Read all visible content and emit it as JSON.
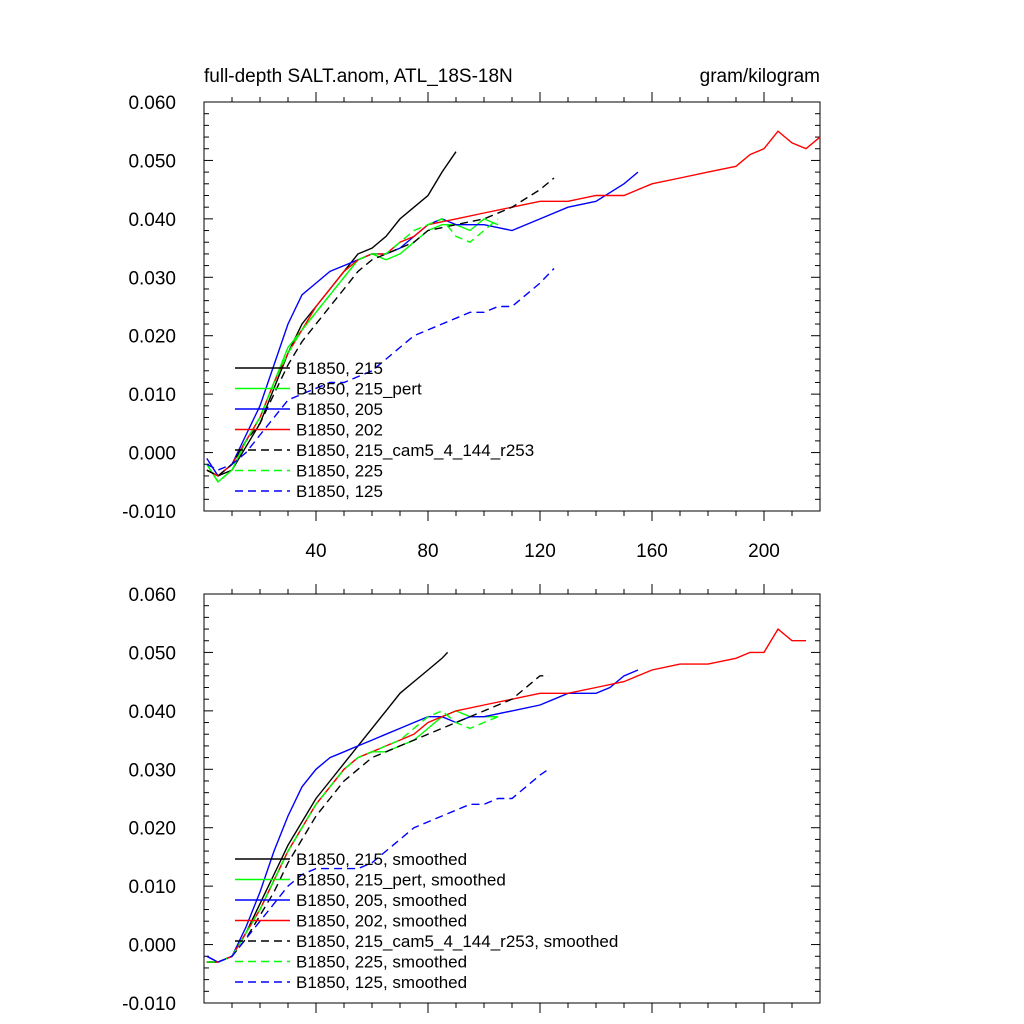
{
  "chart_data": [
    {
      "type": "line",
      "title_left": "full-depth SALT.anom, ATL_18S-18N",
      "title_right": "gram/kilogram",
      "xlim": [
        0,
        220
      ],
      "ylim": [
        -0.01,
        0.06
      ],
      "x_ticks": [
        40,
        80,
        120,
        160,
        200
      ],
      "x_tick_labels": [
        "40",
        "80",
        "120",
        "160",
        "200"
      ],
      "y_ticks": [
        -0.01,
        0.0,
        0.01,
        0.02,
        0.03,
        0.04,
        0.05,
        0.06
      ],
      "y_tick_labels": [
        "-0.010",
        "0.000",
        "0.010",
        "0.020",
        "0.030",
        "0.040",
        "0.050",
        "0.060"
      ],
      "legend_position": "lower-left",
      "series": [
        {
          "name": "B1850, 215",
          "color": "#000000",
          "dash": "solid",
          "x": [
            1,
            5,
            10,
            15,
            20,
            25,
            30,
            35,
            40,
            45,
            50,
            55,
            60,
            65,
            70,
            75,
            80,
            85,
            90
          ],
          "y": [
            -0.003,
            -0.004,
            -0.003,
            0.001,
            0.005,
            0.011,
            0.017,
            0.022,
            0.025,
            0.028,
            0.031,
            0.034,
            0.035,
            0.037,
            0.04,
            0.042,
            0.044,
            0.048,
            0.0515
          ]
        },
        {
          "name": "B1850, 215_pert",
          "color": "#00ff00",
          "dash": "solid",
          "x": [
            1,
            5,
            10,
            15,
            20,
            25,
            30,
            35,
            40,
            45,
            50,
            55,
            60,
            65,
            70,
            75,
            80,
            85,
            90,
            95,
            100,
            105
          ],
          "y": [
            -0.002,
            -0.005,
            -0.003,
            0.002,
            0.006,
            0.012,
            0.018,
            0.021,
            0.024,
            0.027,
            0.03,
            0.033,
            0.034,
            0.033,
            0.034,
            0.036,
            0.038,
            0.039,
            0.039,
            0.038,
            0.04,
            0.039
          ]
        },
        {
          "name": "B1850, 205",
          "color": "#0000ff",
          "dash": "solid",
          "x": [
            1,
            5,
            10,
            15,
            20,
            25,
            30,
            35,
            40,
            45,
            50,
            55,
            60,
            65,
            70,
            75,
            80,
            85,
            90,
            100,
            110,
            120,
            130,
            140,
            150,
            155
          ],
          "y": [
            -0.001,
            -0.004,
            -0.002,
            0.003,
            0.008,
            0.015,
            0.022,
            0.027,
            0.029,
            0.031,
            0.032,
            0.033,
            0.034,
            0.034,
            0.035,
            0.037,
            0.039,
            0.04,
            0.039,
            0.039,
            0.038,
            0.04,
            0.042,
            0.043,
            0.046,
            0.048
          ]
        },
        {
          "name": "B1850, 202",
          "color": "#ff0000",
          "dash": "solid",
          "x": [
            1,
            5,
            10,
            15,
            20,
            25,
            30,
            35,
            40,
            45,
            50,
            55,
            60,
            65,
            70,
            75,
            80,
            90,
            100,
            110,
            120,
            130,
            140,
            150,
            160,
            170,
            180,
            190,
            195,
            200,
            205,
            210,
            215,
            220
          ],
          "y": [
            -0.003,
            -0.004,
            -0.002,
            0.002,
            0.006,
            0.012,
            0.017,
            0.021,
            0.025,
            0.028,
            0.031,
            0.033,
            0.034,
            0.034,
            0.036,
            0.037,
            0.039,
            0.04,
            0.041,
            0.042,
            0.043,
            0.043,
            0.044,
            0.044,
            0.046,
            0.047,
            0.048,
            0.049,
            0.051,
            0.052,
            0.055,
            0.053,
            0.052,
            0.054
          ]
        },
        {
          "name": "B1850, 215_cam5_4_144_r253",
          "color": "#000000",
          "dash": "dashed",
          "x": [
            1,
            5,
            10,
            15,
            20,
            25,
            30,
            35,
            40,
            45,
            50,
            55,
            60,
            65,
            70,
            75,
            80,
            90,
            100,
            110,
            120,
            125
          ],
          "y": [
            -0.003,
            -0.004,
            -0.002,
            0.002,
            0.005,
            0.01,
            0.015,
            0.019,
            0.022,
            0.025,
            0.028,
            0.031,
            0.033,
            0.034,
            0.035,
            0.036,
            0.038,
            0.039,
            0.04,
            0.042,
            0.045,
            0.047
          ]
        },
        {
          "name": "B1850, 225",
          "color": "#00ff00",
          "dash": "dashed",
          "x": [
            1,
            5,
            10,
            15,
            20,
            25,
            30,
            35,
            40,
            45,
            50,
            55,
            60,
            65,
            70,
            75,
            80,
            85,
            90,
            95,
            100,
            105
          ],
          "y": [
            -0.002,
            -0.005,
            -0.003,
            0.002,
            0.006,
            0.012,
            0.017,
            0.021,
            0.024,
            0.027,
            0.03,
            0.033,
            0.034,
            0.034,
            0.036,
            0.038,
            0.039,
            0.04,
            0.037,
            0.036,
            0.038,
            0.04
          ]
        },
        {
          "name": "B1850, 125",
          "color": "#0000ff",
          "dash": "dashed",
          "x": [
            1,
            5,
            10,
            15,
            20,
            25,
            30,
            35,
            40,
            45,
            50,
            55,
            60,
            65,
            70,
            75,
            80,
            85,
            90,
            95,
            100,
            105,
            110,
            115,
            120,
            125
          ],
          "y": [
            -0.002,
            -0.003,
            -0.002,
            0.0,
            0.003,
            0.006,
            0.009,
            0.01,
            0.011,
            0.012,
            0.012,
            0.013,
            0.014,
            0.016,
            0.018,
            0.02,
            0.021,
            0.022,
            0.023,
            0.024,
            0.024,
            0.025,
            0.025,
            0.027,
            0.029,
            0.0315
          ]
        }
      ]
    },
    {
      "type": "line",
      "xlim": [
        0,
        220
      ],
      "ylim": [
        -0.01,
        0.06
      ],
      "x_ticks": [
        40,
        80,
        120,
        160,
        200
      ],
      "y_ticks": [
        -0.01,
        0.0,
        0.01,
        0.02,
        0.03,
        0.04,
        0.05,
        0.06
      ],
      "y_tick_labels": [
        "-0.010",
        "0.000",
        "0.010",
        "0.020",
        "0.030",
        "0.040",
        "0.050",
        "0.060"
      ],
      "legend_position": "lower-left",
      "series": [
        {
          "name": "B1850, 215, smoothed",
          "color": "#000000",
          "dash": "solid",
          "x": [
            1,
            5,
            10,
            15,
            20,
            25,
            30,
            35,
            40,
            45,
            50,
            55,
            60,
            65,
            70,
            75,
            80,
            85,
            87
          ],
          "y": [
            -0.003,
            -0.003,
            -0.002,
            0.002,
            0.007,
            0.012,
            0.017,
            0.021,
            0.025,
            0.028,
            0.031,
            0.034,
            0.037,
            0.04,
            0.043,
            0.045,
            0.047,
            0.049,
            0.05
          ]
        },
        {
          "name": "B1850, 215_pert, smoothed",
          "color": "#00ff00",
          "dash": "solid",
          "x": [
            1,
            5,
            10,
            15,
            20,
            25,
            30,
            35,
            40,
            45,
            50,
            55,
            60,
            65,
            70,
            75,
            80,
            85,
            90,
            95,
            100,
            105
          ],
          "y": [
            -0.003,
            -0.003,
            -0.002,
            0.002,
            0.006,
            0.011,
            0.016,
            0.02,
            0.024,
            0.027,
            0.03,
            0.032,
            0.033,
            0.033,
            0.034,
            0.035,
            0.037,
            0.039,
            0.04,
            0.039,
            0.039,
            0.039
          ]
        },
        {
          "name": "B1850, 205, smoothed",
          "color": "#0000ff",
          "dash": "solid",
          "x": [
            1,
            5,
            10,
            15,
            20,
            25,
            30,
            35,
            40,
            45,
            50,
            55,
            60,
            65,
            70,
            75,
            80,
            85,
            90,
            95,
            100,
            110,
            120,
            125,
            130,
            140,
            145,
            150,
            155
          ],
          "y": [
            -0.002,
            -0.003,
            -0.002,
            0.003,
            0.009,
            0.016,
            0.022,
            0.027,
            0.03,
            0.032,
            0.033,
            0.034,
            0.035,
            0.036,
            0.037,
            0.038,
            0.039,
            0.039,
            0.038,
            0.039,
            0.039,
            0.04,
            0.041,
            0.042,
            0.043,
            0.043,
            0.044,
            0.046,
            0.047
          ]
        },
        {
          "name": "B1850, 202, smoothed",
          "color": "#ff0000",
          "dash": "solid",
          "x": [
            1,
            5,
            10,
            15,
            20,
            25,
            30,
            35,
            40,
            45,
            50,
            55,
            60,
            65,
            70,
            75,
            80,
            90,
            100,
            110,
            120,
            130,
            140,
            150,
            160,
            170,
            180,
            190,
            195,
            200,
            205,
            210,
            215
          ],
          "y": [
            -0.003,
            -0.003,
            -0.002,
            0.002,
            0.006,
            0.011,
            0.016,
            0.02,
            0.024,
            0.027,
            0.03,
            0.032,
            0.033,
            0.034,
            0.035,
            0.036,
            0.038,
            0.04,
            0.041,
            0.042,
            0.043,
            0.043,
            0.044,
            0.045,
            0.047,
            0.048,
            0.048,
            0.049,
            0.05,
            0.05,
            0.054,
            0.052,
            0.052
          ]
        },
        {
          "name": "B1850, 215_cam5_4_144_r253, smoothed",
          "color": "#000000",
          "dash": "dashed",
          "x": [
            1,
            5,
            10,
            15,
            20,
            25,
            30,
            35,
            40,
            45,
            50,
            55,
            60,
            65,
            70,
            75,
            80,
            90,
            100,
            110,
            115,
            120,
            123
          ],
          "y": [
            -0.003,
            -0.003,
            -0.002,
            0.001,
            0.005,
            0.009,
            0.014,
            0.018,
            0.022,
            0.025,
            0.028,
            0.03,
            0.032,
            0.033,
            0.034,
            0.035,
            0.036,
            0.038,
            0.04,
            0.042,
            0.044,
            0.046,
            0.046
          ]
        },
        {
          "name": "B1850, 225, smoothed",
          "color": "#00ff00",
          "dash": "dashed",
          "x": [
            1,
            5,
            10,
            15,
            20,
            25,
            30,
            35,
            40,
            45,
            50,
            55,
            60,
            65,
            70,
            75,
            80,
            85,
            90,
            95,
            100,
            105
          ],
          "y": [
            -0.003,
            -0.003,
            -0.002,
            0.002,
            0.006,
            0.011,
            0.016,
            0.02,
            0.024,
            0.027,
            0.03,
            0.032,
            0.033,
            0.034,
            0.035,
            0.037,
            0.039,
            0.04,
            0.038,
            0.037,
            0.038,
            0.039
          ]
        },
        {
          "name": "B1850, 125, smoothed",
          "color": "#0000ff",
          "dash": "dashed",
          "x": [
            1,
            5,
            10,
            15,
            20,
            25,
            30,
            35,
            40,
            45,
            50,
            55,
            60,
            65,
            70,
            75,
            80,
            85,
            90,
            95,
            100,
            105,
            110,
            115,
            120,
            123
          ],
          "y": [
            -0.002,
            -0.003,
            -0.002,
            0.001,
            0.004,
            0.007,
            0.01,
            0.012,
            0.013,
            0.013,
            0.013,
            0.013,
            0.014,
            0.016,
            0.018,
            0.02,
            0.021,
            0.022,
            0.023,
            0.024,
            0.024,
            0.025,
            0.025,
            0.027,
            0.029,
            0.03
          ]
        }
      ]
    }
  ]
}
